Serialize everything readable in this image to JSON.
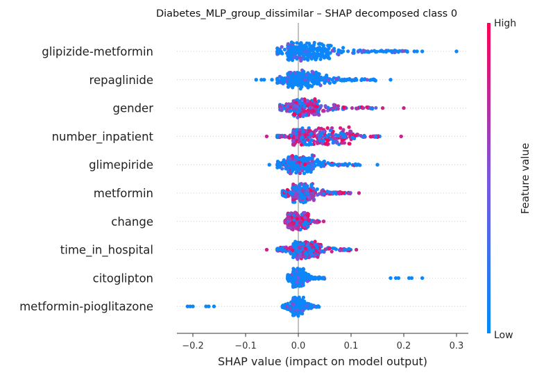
{
  "chart_data": {
    "type": "scatter",
    "subtype": "shap-beeswarm",
    "title": "Diabetes_MLP_group_dissimilar – SHAP decomposed class 0",
    "xlabel": "SHAP value (impact on model output)",
    "ylabel": "",
    "xlim": [
      -0.235,
      0.32
    ],
    "xticks": [
      -0.2,
      -0.1,
      0.0,
      0.1,
      0.2,
      0.3
    ],
    "xtick_labels": [
      "−0.2",
      "−0.1",
      "0.0",
      "0.1",
      "0.2",
      "0.3"
    ],
    "grid": false,
    "colorbar": {
      "label": "Feature value",
      "high_label": "High",
      "low_label": "Low",
      "colors": [
        "#008bfb",
        "#7b56e0",
        "#ff0052"
      ]
    },
    "features": [
      {
        "name": "glipizide-metformin",
        "range": [
          -0.04,
          0.21
        ],
        "body": [
          -0.02,
          0.06
        ],
        "outliers": [
          0.22,
          0.225,
          0.235,
          0.3
        ],
        "red_weight": 0.0
      },
      {
        "name": "repaglinide",
        "range": [
          -0.04,
          0.15
        ],
        "body": [
          -0.02,
          0.04
        ],
        "outliers": [
          -0.08,
          -0.07,
          -0.065,
          -0.05,
          0.175
        ],
        "red_weight": 0.0
      },
      {
        "name": "gender",
        "range": [
          -0.035,
          0.15
        ],
        "body": [
          -0.01,
          0.04
        ],
        "outliers": [
          0.16,
          0.2
        ],
        "red_weight": 0.55
      },
      {
        "name": "number_inpatient",
        "range": [
          -0.04,
          0.155
        ],
        "body": [
          -0.01,
          0.1
        ],
        "outliers": [
          -0.06,
          0.195
        ],
        "red_weight": 0.65
      },
      {
        "name": "glimepiride",
        "range": [
          -0.04,
          0.12
        ],
        "body": [
          -0.02,
          0.03
        ],
        "outliers": [
          -0.055,
          0.15
        ],
        "red_weight": 0.15
      },
      {
        "name": "metformin",
        "range": [
          -0.03,
          0.1
        ],
        "body": [
          -0.01,
          0.03
        ],
        "outliers": [
          0.115
        ],
        "red_weight": 0.4
      },
      {
        "name": "change",
        "range": [
          -0.025,
          0.04
        ],
        "body": [
          -0.02,
          0.02
        ],
        "outliers": [
          0.048
        ],
        "red_weight": 0.85
      },
      {
        "name": "time_in_hospital",
        "range": [
          -0.04,
          0.1
        ],
        "body": [
          -0.01,
          0.04
        ],
        "outliers": [
          -0.06,
          0.11
        ],
        "red_weight": 0.45
      },
      {
        "name": "citoglipton",
        "range": [
          -0.02,
          0.05
        ],
        "body": [
          -0.01,
          0.01
        ],
        "outliers": [
          0.175,
          0.185,
          0.19,
          0.21,
          0.215,
          0.235
        ],
        "red_weight": 0.0
      },
      {
        "name": "metformin-pioglitazone",
        "range": [
          -0.03,
          0.04
        ],
        "body": [
          -0.01,
          0.01
        ],
        "outliers": [
          -0.21,
          -0.205,
          -0.2,
          -0.175,
          -0.17,
          -0.16
        ],
        "red_weight": 0.0
      }
    ]
  }
}
